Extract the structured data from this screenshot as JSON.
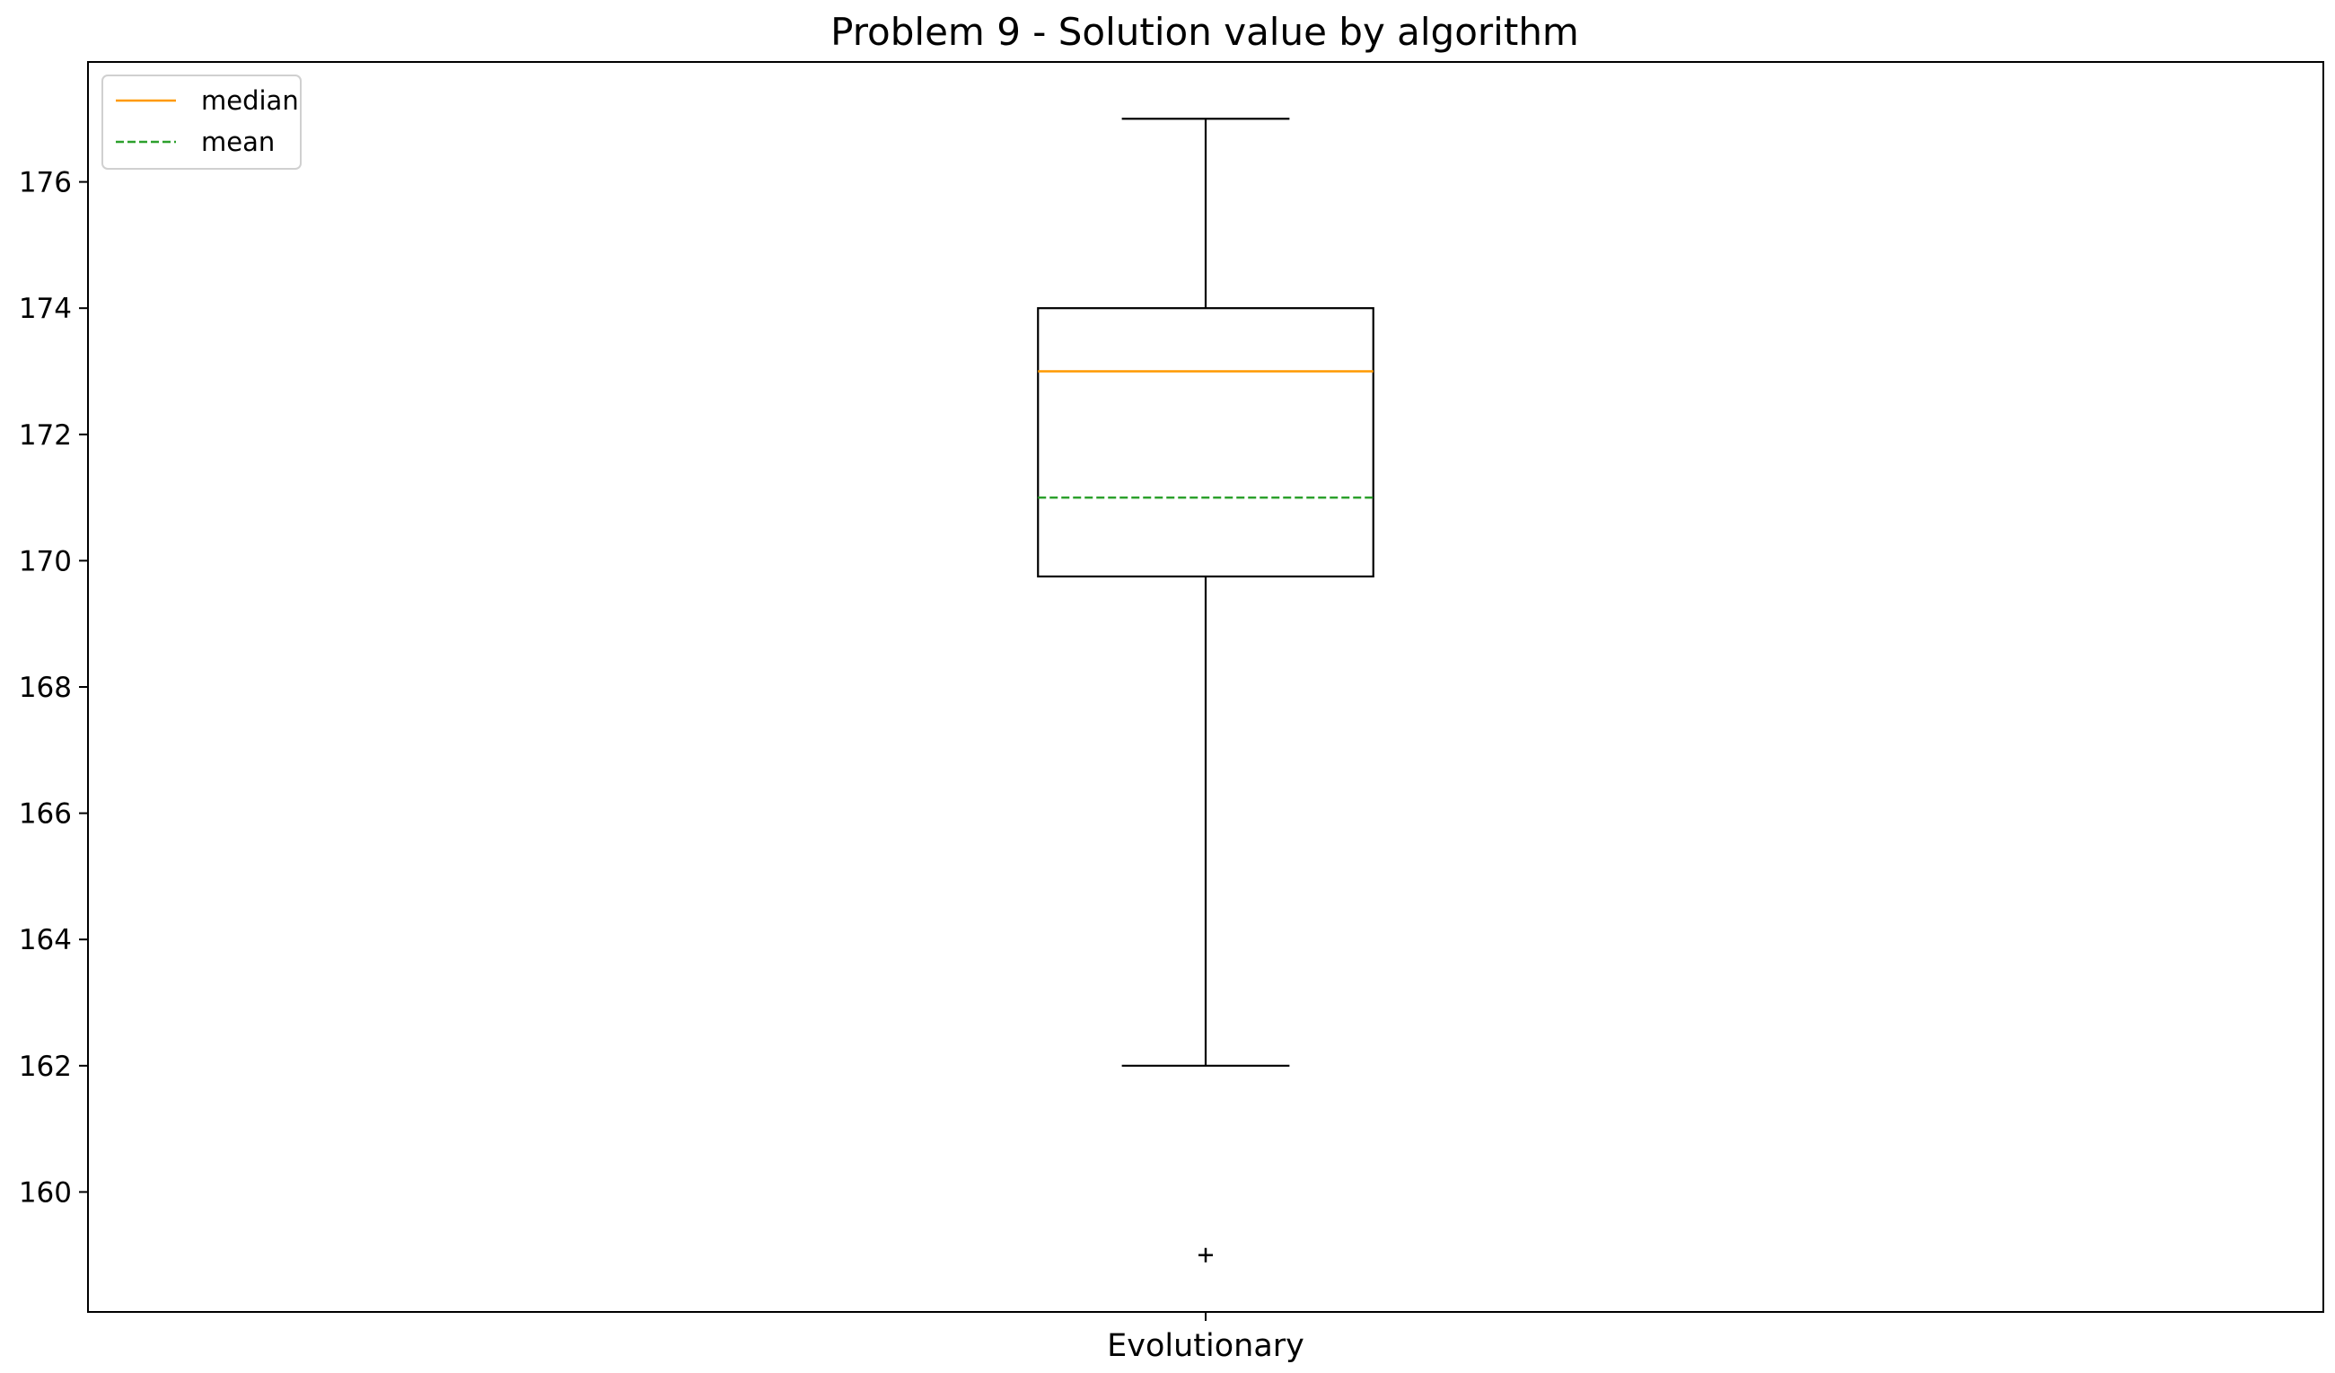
{
  "chart_data": {
    "type": "box",
    "title": "Problem 9 - Solution value by algorithm",
    "xlabel": "",
    "ylabel": "",
    "categories": [
      "Evolutionary"
    ],
    "boxes": [
      {
        "category": "Evolutionary",
        "whisker_low": 162,
        "q1": 169.75,
        "median": 173,
        "mean": 171,
        "q3": 174,
        "whisker_high": 177,
        "outliers": [
          159
        ]
      }
    ],
    "ylim": [
      158.1,
      177.9
    ],
    "yticks": [
      160,
      162,
      164,
      166,
      168,
      170,
      172,
      174,
      176
    ],
    "legend": {
      "placement": "top-left",
      "entries": [
        {
          "label": "median",
          "color": "#ff9900",
          "style": "solid"
        },
        {
          "label": "mean",
          "color": "#2ca02c",
          "style": "dashed"
        }
      ]
    },
    "grid": false,
    "colors": {
      "box": "#000000",
      "median": "#ff9900",
      "mean": "#2ca02c",
      "outlier": "#000000"
    }
  }
}
